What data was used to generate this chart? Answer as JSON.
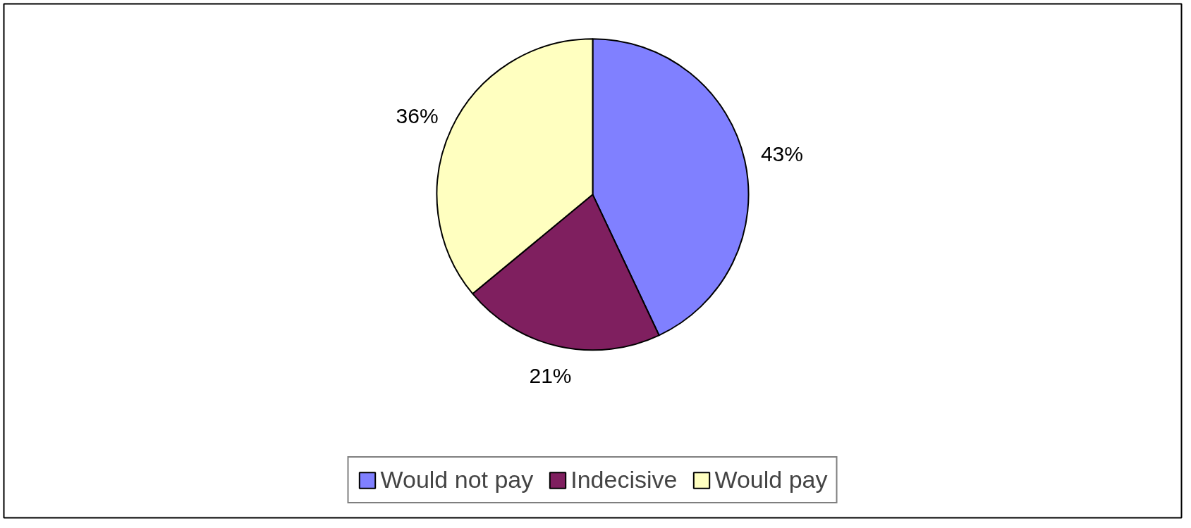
{
  "chart_data": {
    "type": "pie",
    "categories": [
      "Would not pay",
      "Indecisive",
      "Would pay"
    ],
    "values": [
      43,
      21,
      36
    ],
    "colors": [
      "#8080ff",
      "#7f1f5f",
      "#ffffc0"
    ],
    "value_labels": [
      "43%",
      "21%",
      "36%"
    ],
    "legend": "bottom"
  }
}
